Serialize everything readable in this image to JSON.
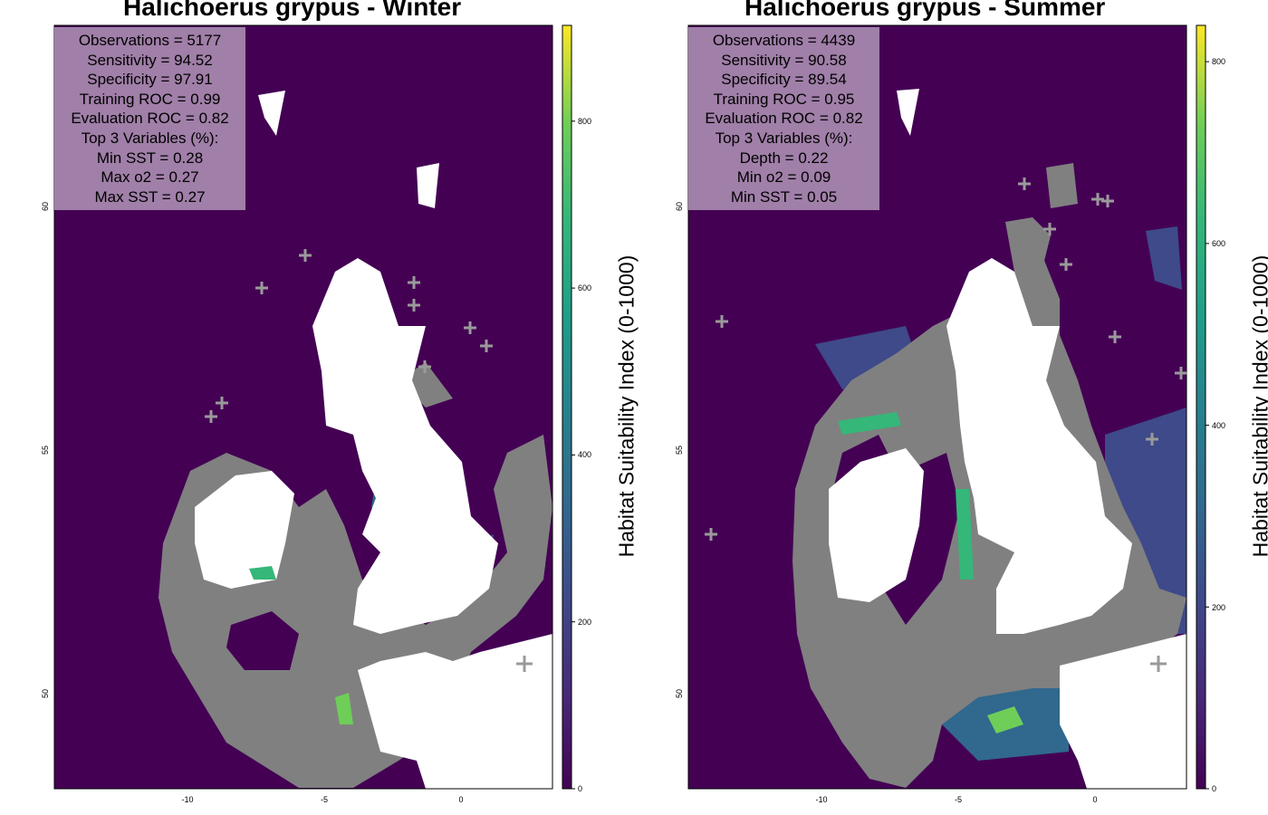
{
  "panels": [
    {
      "id": "winter",
      "title": "Halichoerus grypus - Winter",
      "stats": [
        "Observations = 5177",
        "Sensitivity = 94.52",
        "Specificity = 97.91",
        "Training ROC = 0.99",
        "Evaluation ROC = 0.82",
        "Top 3 Variables (%):",
        "Min SST = 0.28",
        "Max o2 = 0.27",
        "Max SST = 0.27"
      ],
      "x_ticks": [
        "-10",
        "-5",
        "0"
      ],
      "y_ticks": [
        "50",
        "55",
        "60"
      ],
      "colorbar_ticks": [
        "0",
        "200",
        "400",
        "600",
        "800"
      ],
      "colorbar_max": 915,
      "colorbar_label": "Habitat Suitability Index (0-1000)"
    },
    {
      "id": "summer",
      "title": "Halichoerus grypus - Summer",
      "stats": [
        "Observations = 4439",
        "Sensitivity = 90.58",
        "Specificity = 89.54",
        "Training ROC = 0.95",
        "Evaluation ROC = 0.82",
        "Top 3 Variables (%):",
        "Depth = 0.22",
        "Min o2 = 0.09",
        "Min SST = 0.05"
      ],
      "x_ticks": [
        "-10",
        "-5",
        "0"
      ],
      "y_ticks": [
        "50",
        "55",
        "60"
      ],
      "colorbar_ticks": [
        "0",
        "200",
        "400",
        "600",
        "800"
      ],
      "colorbar_max": 840,
      "colorbar_label": "Habitat Suitability Index (0-1000)"
    }
  ],
  "axis_ranges": {
    "lon": [
      -15,
      3.2
    ],
    "lat": [
      48.1,
      63.8
    ]
  },
  "colors": {
    "background": "#440154",
    "land": "#ffffff",
    "observation_points": "#808080",
    "stats_box": "#a07fa8"
  },
  "colormap": "viridis"
}
